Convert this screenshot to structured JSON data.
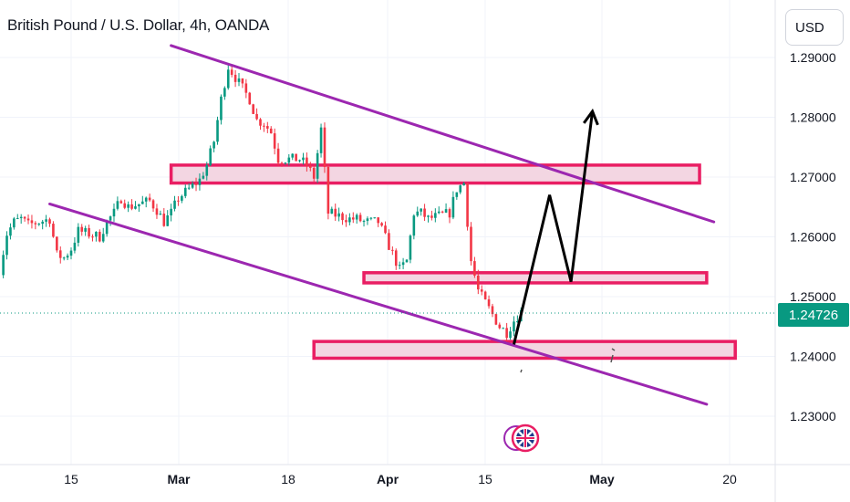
{
  "header": {
    "title": "British Pound / U.S. Dollar, 4h, OANDA",
    "currency_label": "USD"
  },
  "current_price_label": "1.24726",
  "colors": {
    "up": "#089981",
    "down": "#f23645",
    "channel": "#9c27b0",
    "zone_border": "#e91e63",
    "zone_fill": "#f3d6e2",
    "projection": "#000000",
    "price_line": "#089981"
  },
  "chart_data": {
    "type": "candlestick",
    "ylim": [
      1.22,
      1.29
    ],
    "y_ticks": [
      "1.29000",
      "1.28000",
      "1.27000",
      "1.26000",
      "1.25000",
      "1.24000",
      "1.23000"
    ],
    "x_ticks": [
      {
        "label": "15",
        "bold": false
      },
      {
        "label": "Mar",
        "bold": true
      },
      {
        "label": "18",
        "bold": false
      },
      {
        "label": "Apr",
        "bold": true
      },
      {
        "label": "15",
        "bold": false
      },
      {
        "label": "May",
        "bold": true
      },
      {
        "label": "20",
        "bold": false
      }
    ],
    "current_price": 1.24726,
    "price_path": [
      [
        "Feb 05",
        1.2545
      ],
      [
        "Feb 06",
        1.2605
      ],
      [
        "Feb 07",
        1.2625
      ],
      [
        "Feb 08",
        1.263
      ],
      [
        "Feb 09",
        1.262
      ],
      [
        "Feb 12",
        1.263
      ],
      [
        "Feb 13",
        1.257
      ],
      [
        "Feb 14",
        1.2565
      ],
      [
        "Feb 15",
        1.258
      ],
      [
        "Feb 16",
        1.261
      ],
      [
        "Feb 19",
        1.26
      ],
      [
        "Feb 20",
        1.2625
      ],
      [
        "Feb 21",
        1.264
      ],
      [
        "Feb 22",
        1.2665
      ],
      [
        "Feb 23",
        1.265
      ],
      [
        "Feb 26",
        1.266
      ],
      [
        "Feb 27",
        1.2645
      ],
      [
        "Feb 28",
        1.2625
      ],
      [
        "Feb 29",
        1.264
      ],
      [
        "Mar 01",
        1.2665
      ],
      [
        "Mar 04",
        1.2695
      ],
      [
        "Mar 05",
        1.272
      ],
      [
        "Mar 06",
        1.276
      ],
      [
        "Mar 07",
        1.283
      ],
      [
        "Mar 08",
        1.2885
      ],
      [
        "Mar 11",
        1.283
      ],
      [
        "Mar 12",
        1.2795
      ],
      [
        "Mar 13",
        1.279
      ],
      [
        "Mar 14",
        1.2775
      ],
      [
        "Mar 15",
        1.273
      ],
      [
        "Mar 18",
        1.273
      ],
      [
        "Mar 19",
        1.272
      ],
      [
        "Mar 20",
        1.27
      ],
      [
        "Mar 21",
        1.278
      ],
      [
        "Mar 22",
        1.264
      ],
      [
        "Mar 25",
        1.263
      ],
      [
        "Mar 26",
        1.263
      ],
      [
        "Mar 27",
        1.2625
      ],
      [
        "Mar 28",
        1.2625
      ],
      [
        "Mar 29",
        1.2625
      ],
      [
        "Apr 01",
        1.2545
      ],
      [
        "Apr 02",
        1.256
      ],
      [
        "Apr 03",
        1.264
      ],
      [
        "Apr 04",
        1.264
      ],
      [
        "Apr 05",
        1.263
      ],
      [
        "Apr 08",
        1.264
      ],
      [
        "Apr 09",
        1.268
      ],
      [
        "Apr 10",
        1.269
      ],
      [
        "Apr 11",
        1.256
      ],
      [
        "Apr 12",
        1.251
      ],
      [
        "Apr 15",
        1.245
      ],
      [
        "Apr 16",
        1.244
      ],
      [
        "Apr 17",
        1.246
      ],
      [
        "Apr 18",
        1.2475
      ]
    ],
    "channel_upper": {
      "start": [
        "Feb 29",
        1.292
      ],
      "end": [
        "May 15",
        1.2625
      ]
    },
    "channel_lower": {
      "start": [
        "Feb 12",
        1.2655
      ],
      "end": [
        "May 14",
        1.232
      ]
    },
    "zones": [
      {
        "top": 1.272,
        "bottom": 1.269,
        "start": "Feb 29",
        "end": "May 13"
      },
      {
        "top": 1.254,
        "bottom": 1.2523,
        "start": "Mar 27",
        "end": "May 14"
      },
      {
        "top": 1.2425,
        "bottom": 1.2397,
        "start": "Mar 20",
        "end": "May 18"
      }
    ],
    "projection_path": [
      [
        "Apr 17",
        1.242
      ],
      [
        "Apr 22",
        1.267
      ],
      [
        "Apr 25",
        1.2525
      ],
      [
        "Apr 28",
        1.281
      ]
    ]
  }
}
